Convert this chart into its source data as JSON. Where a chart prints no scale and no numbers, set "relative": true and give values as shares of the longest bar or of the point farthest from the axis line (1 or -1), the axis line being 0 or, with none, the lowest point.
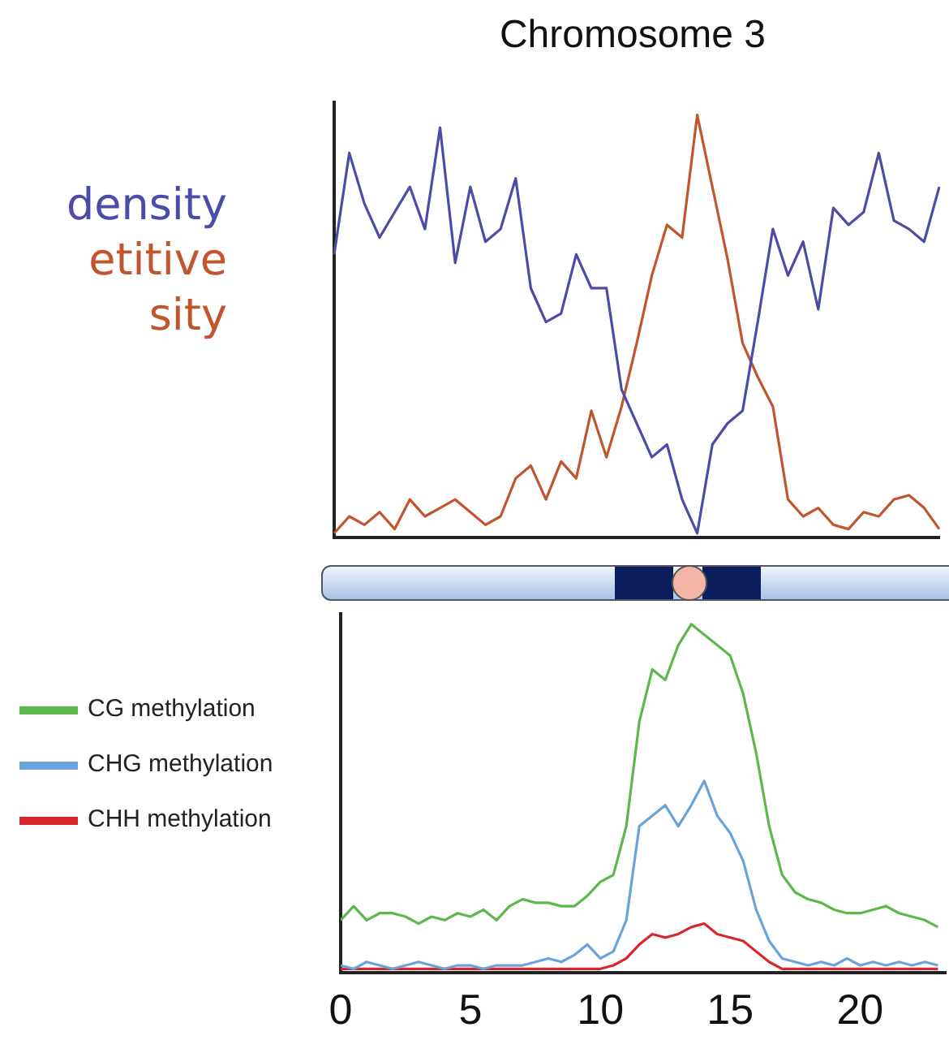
{
  "chart_data": [
    {
      "type": "line",
      "title": "Chromosome 3",
      "relative": true,
      "legend": "left",
      "tick_labels": false,
      "categories": [
        null,
        null,
        null,
        null,
        null,
        null,
        null,
        null,
        null,
        null,
        null,
        null,
        null,
        null,
        null,
        null,
        null,
        null,
        null,
        null,
        null,
        null,
        null,
        null,
        null,
        null,
        null,
        null,
        null,
        null,
        null,
        null,
        null,
        null,
        null,
        null,
        null,
        null,
        null,
        null,
        null
      ],
      "series": [
        {
          "name": "density",
          "color": "#4b4ba8",
          "values": [
            0.67,
            0.91,
            0.79,
            0.71,
            0.77,
            0.83,
            0.73,
            0.97,
            0.65,
            0.83,
            0.7,
            0.73,
            0.85,
            0.59,
            0.51,
            0.53,
            0.67,
            0.59,
            0.59,
            0.35,
            0.27,
            0.19,
            0.22,
            0.09,
            0.01,
            0.22,
            0.27,
            0.3,
            0.51,
            0.73,
            0.62,
            0.7,
            0.54,
            0.78,
            0.74,
            0.77,
            0.91,
            0.75,
            0.73,
            0.7,
            0.83
          ]
        },
        {
          "name": "etitive sity",
          "color": "#c0552e",
          "values": [
            0.01,
            0.05,
            0.03,
            0.06,
            0.02,
            0.09,
            0.05,
            0.07,
            0.09,
            0.06,
            0.03,
            0.05,
            0.14,
            0.17,
            0.09,
            0.18,
            0.14,
            0.3,
            0.19,
            0.31,
            0.46,
            0.62,
            0.74,
            0.71,
            1,
            0.83,
            0.66,
            0.46,
            0.38,
            0.31,
            0.09,
            0.05,
            0.07,
            0.03,
            0.02,
            0.06,
            0.05,
            0.09,
            0.1,
            0.07,
            0.02
          ]
        }
      ]
    },
    {
      "type": "line",
      "relative": true,
      "legend": "left",
      "tick_labels": "x",
      "xlim": [
        0,
        23.3
      ],
      "xticks": [
        0,
        5,
        10,
        15,
        20
      ],
      "x": [
        0,
        0.5,
        1,
        1.5,
        2,
        2.5,
        3,
        3.5,
        4,
        4.5,
        5,
        5.5,
        6,
        6.5,
        7,
        7.5,
        8,
        8.5,
        9,
        9.5,
        10,
        10.5,
        11,
        11.5,
        12,
        12.5,
        13,
        13.5,
        14,
        14.5,
        15,
        15.5,
        16,
        16.5,
        17,
        17.5,
        18,
        18.5,
        19,
        19.5,
        20,
        20.5,
        21,
        21.5,
        22,
        22.5,
        23
      ],
      "series": [
        {
          "name": "CG methylation",
          "color": "#5cb84a",
          "values": [
            0.15,
            0.19,
            0.15,
            0.17,
            0.17,
            0.16,
            0.14,
            0.16,
            0.15,
            0.17,
            0.16,
            0.18,
            0.15,
            0.19,
            0.21,
            0.2,
            0.2,
            0.19,
            0.19,
            0.22,
            0.26,
            0.28,
            0.42,
            0.72,
            0.87,
            0.84,
            0.94,
            1,
            0.97,
            0.94,
            0.91,
            0.8,
            0.63,
            0.42,
            0.28,
            0.23,
            0.21,
            0.2,
            0.18,
            0.17,
            0.17,
            0.18,
            0.19,
            0.17,
            0.16,
            0.15,
            0.13
          ]
        },
        {
          "name": "CHG methylation",
          "color": "#6aa3dc",
          "values": [
            0.02,
            0.01,
            0.03,
            0.02,
            0.01,
            0.02,
            0.03,
            0.02,
            0.01,
            0.02,
            0.02,
            0.01,
            0.02,
            0.02,
            0.02,
            0.03,
            0.04,
            0.03,
            0.05,
            0.08,
            0.04,
            0.06,
            0.15,
            0.42,
            0.45,
            0.48,
            0.42,
            0.48,
            0.55,
            0.45,
            0.4,
            0.32,
            0.18,
            0.09,
            0.04,
            0.03,
            0.02,
            0.03,
            0.02,
            0.04,
            0.02,
            0.03,
            0.02,
            0.03,
            0.02,
            0.03,
            0.02
          ]
        },
        {
          "name": "CHH methylation",
          "color": "#d8262c",
          "values": [
            0.01,
            0.01,
            0.01,
            0.01,
            0.01,
            0.01,
            0.01,
            0.01,
            0.01,
            0.01,
            0.01,
            0.01,
            0.01,
            0.01,
            0.01,
            0.01,
            0.01,
            0.01,
            0.01,
            0.01,
            0.01,
            0.02,
            0.04,
            0.08,
            0.11,
            0.1,
            0.11,
            0.13,
            0.14,
            0.11,
            0.1,
            0.09,
            0.06,
            0.03,
            0.01,
            0.01,
            0.01,
            0.01,
            0.01,
            0.01,
            0.01,
            0.01,
            0.01,
            0.01,
            0.01,
            0.01,
            0.01
          ]
        }
      ]
    }
  ]
}
